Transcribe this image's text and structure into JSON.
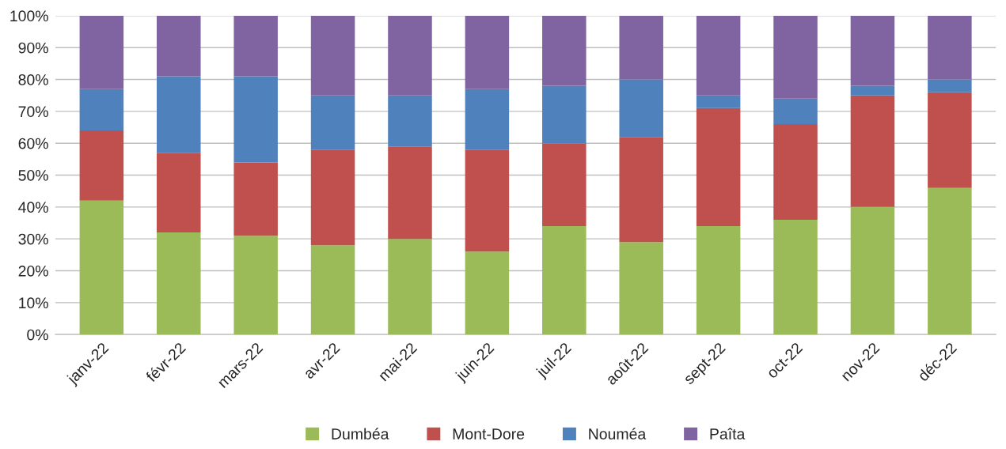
{
  "chart_data": {
    "type": "bar",
    "stacked": true,
    "categories": [
      "janv-22",
      "févr-22",
      "mars-22",
      "avr-22",
      "mai-22",
      "juin-22",
      "juil-22",
      "août-22",
      "sept-22",
      "oct-22",
      "nov-22",
      "déc-22"
    ],
    "series": [
      {
        "name": "Dumbéa",
        "color": "#9bbb59",
        "values": [
          42,
          32,
          31,
          28,
          30,
          26,
          34,
          29,
          34,
          36,
          40,
          46
        ]
      },
      {
        "name": "Mont-Dore",
        "color": "#c0504d",
        "values": [
          22,
          25,
          23,
          30,
          29,
          32,
          26,
          33,
          37,
          30,
          35,
          30
        ]
      },
      {
        "name": "Nouméa",
        "color": "#4f81bd",
        "values": [
          13,
          24,
          27,
          17,
          16,
          19,
          18,
          18,
          4,
          8,
          3,
          4
        ]
      },
      {
        "name": "Paîta",
        "color": "#8064a2",
        "values": [
          23,
          19,
          19,
          25,
          25,
          23,
          22,
          20,
          25,
          26,
          22,
          20
        ]
      }
    ],
    "ylim": [
      0,
      100
    ],
    "yticks": [
      {
        "value": 0,
        "label": "0%"
      },
      {
        "value": 10,
        "label": "10%"
      },
      {
        "value": 20,
        "label": "20%"
      },
      {
        "value": 30,
        "label": "30%"
      },
      {
        "value": 40,
        "label": "40%"
      },
      {
        "value": 50,
        "label": "50%"
      },
      {
        "value": 60,
        "label": "60%"
      },
      {
        "value": 70,
        "label": "70%"
      },
      {
        "value": 80,
        "label": "80%"
      },
      {
        "value": 90,
        "label": "90%"
      },
      {
        "value": 100,
        "label": "100%"
      }
    ],
    "grid": "y",
    "legend": "bottom"
  }
}
